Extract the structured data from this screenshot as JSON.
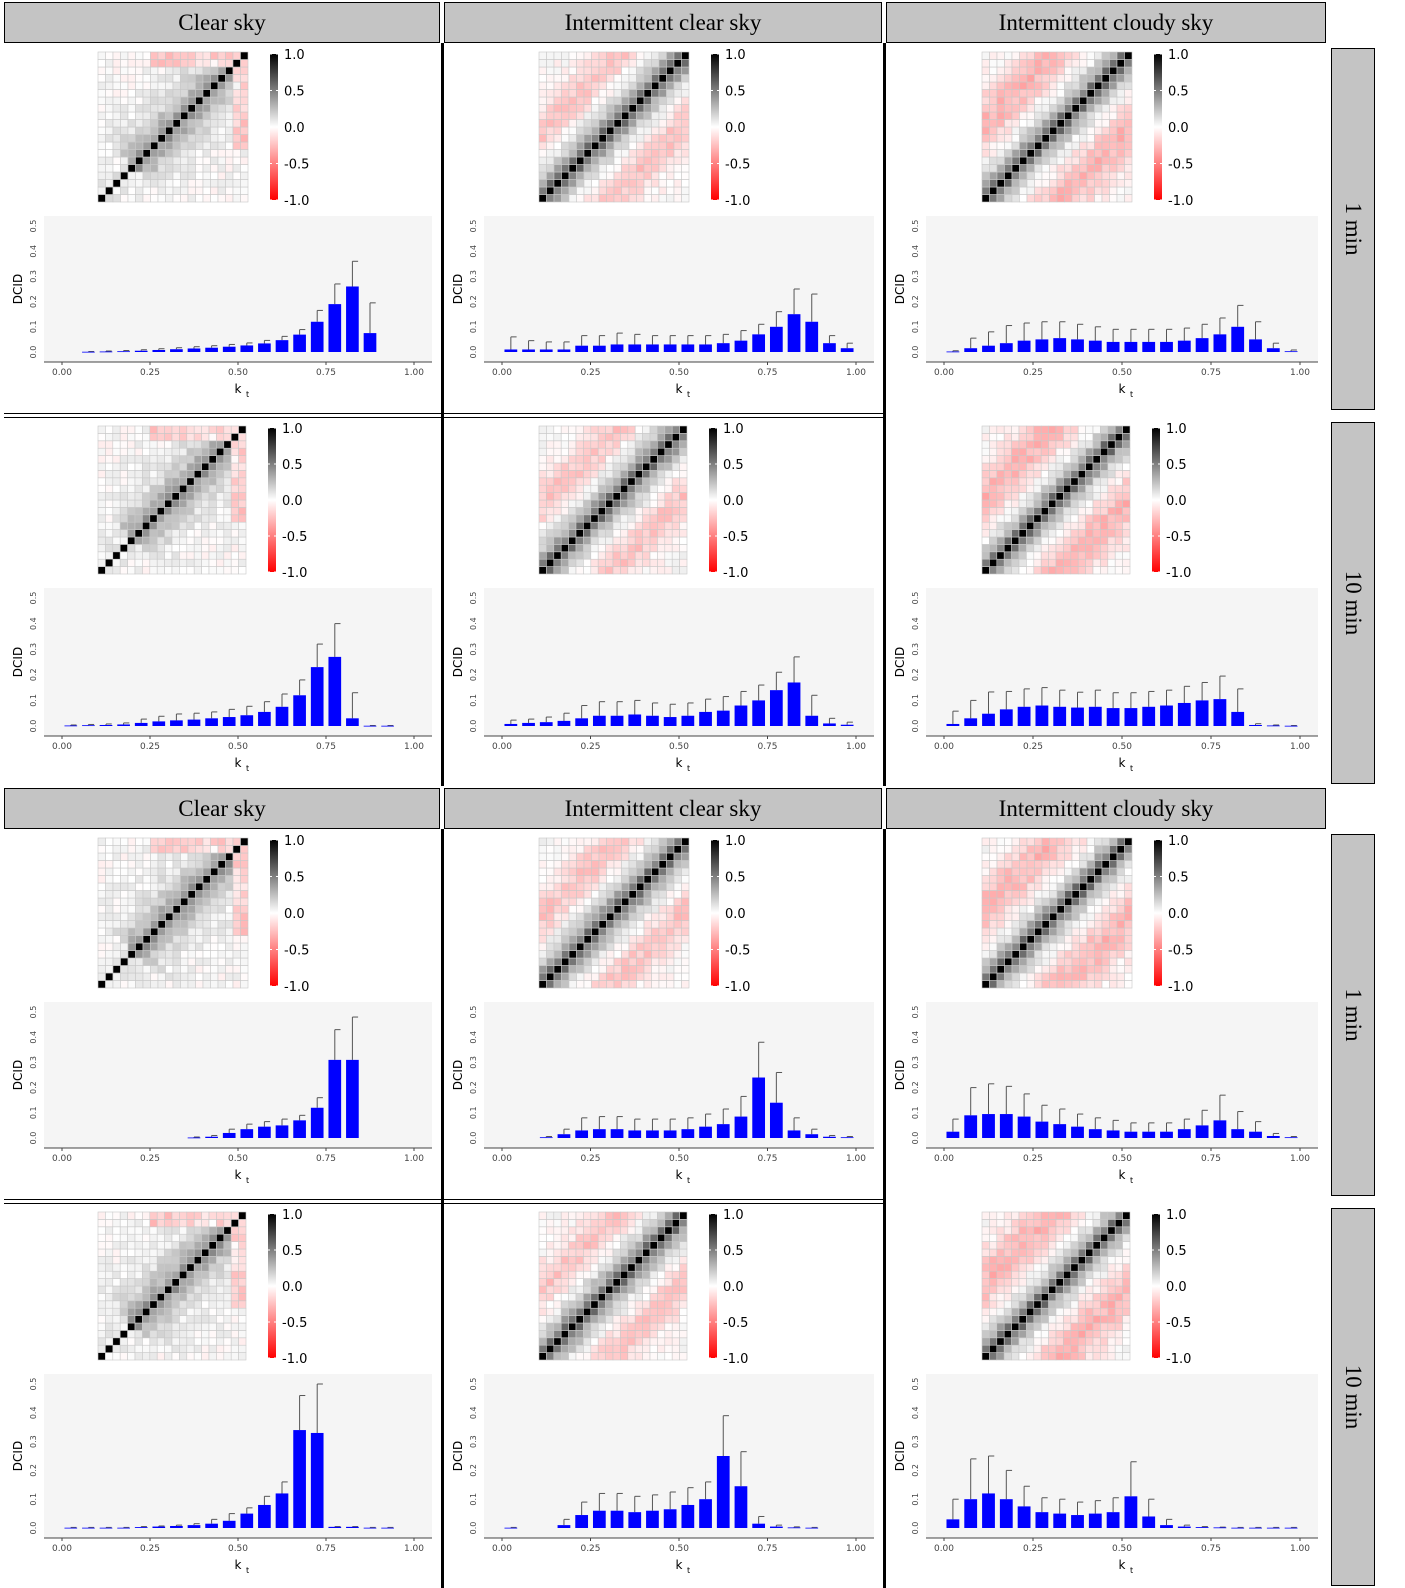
{
  "facets": {
    "columns": [
      "Clear sky",
      "Intermittent clear sky",
      "Intermittent cloudy sky"
    ],
    "rows": [
      "1 min",
      "10 min"
    ]
  },
  "colorbar": {
    "ticks": [
      "1.0",
      "0.5",
      "0.0",
      "-0.5",
      "-1.0"
    ],
    "colors": {
      "positive": "#000000",
      "zero": "#ffffff",
      "negative": "#ff0000"
    }
  },
  "bar_axis": {
    "ylabel": "DCID",
    "xlabel": "k",
    "xlabel_sub": "t",
    "xticks": [
      "0.00",
      "0.25",
      "0.50",
      "0.75",
      "1.00"
    ],
    "yticks": [
      "0.0",
      "0.1",
      "0.2",
      "0.3",
      "0.4",
      "0.5"
    ],
    "bar_color": "#0000ff",
    "panel_bg": "#f5f5f5"
  },
  "chart_data": [
    {
      "type": "bar",
      "block": 1,
      "column": "Clear sky",
      "row": "1 min",
      "bin_width": 0.05,
      "x": [
        0.075,
        0.125,
        0.175,
        0.225,
        0.275,
        0.325,
        0.375,
        0.425,
        0.475,
        0.525,
        0.575,
        0.625,
        0.675,
        0.725,
        0.775,
        0.825,
        0.875
      ],
      "values": [
        0.001,
        0.002,
        0.003,
        0.005,
        0.008,
        0.011,
        0.014,
        0.017,
        0.021,
        0.026,
        0.034,
        0.047,
        0.069,
        0.12,
        0.19,
        0.26,
        0.075
      ],
      "errors": [
        0.001,
        0.002,
        0.003,
        0.004,
        0.005,
        0.006,
        0.007,
        0.008,
        0.009,
        0.01,
        0.012,
        0.015,
        0.02,
        0.045,
        0.08,
        0.1,
        0.12
      ],
      "xlim": [
        0,
        1
      ],
      "ylim": [
        0,
        0.5
      ]
    },
    {
      "type": "bar",
      "block": 1,
      "column": "Intermittent clear sky",
      "row": "1 min",
      "bin_width": 0.05,
      "x": [
        0.025,
        0.075,
        0.125,
        0.175,
        0.225,
        0.275,
        0.325,
        0.375,
        0.425,
        0.475,
        0.525,
        0.575,
        0.625,
        0.675,
        0.725,
        0.775,
        0.825,
        0.875,
        0.925,
        0.975
      ],
      "values": [
        0.01,
        0.01,
        0.01,
        0.01,
        0.025,
        0.025,
        0.03,
        0.03,
        0.03,
        0.03,
        0.03,
        0.03,
        0.035,
        0.045,
        0.07,
        0.1,
        0.15,
        0.12,
        0.035,
        0.015
      ],
      "errors": [
        0.05,
        0.035,
        0.03,
        0.03,
        0.04,
        0.04,
        0.045,
        0.04,
        0.035,
        0.035,
        0.035,
        0.035,
        0.035,
        0.04,
        0.04,
        0.06,
        0.1,
        0.11,
        0.03,
        0.02
      ],
      "xlim": [
        0,
        1
      ],
      "ylim": [
        0,
        0.5
      ]
    },
    {
      "type": "bar",
      "block": 1,
      "column": "Intermittent cloudy sky",
      "row": "1 min",
      "bin_width": 0.05,
      "x": [
        0.025,
        0.075,
        0.125,
        0.175,
        0.225,
        0.275,
        0.325,
        0.375,
        0.425,
        0.475,
        0.525,
        0.575,
        0.625,
        0.675,
        0.725,
        0.775,
        0.825,
        0.875,
        0.925,
        0.975
      ],
      "values": [
        0.002,
        0.015,
        0.025,
        0.035,
        0.045,
        0.05,
        0.055,
        0.05,
        0.045,
        0.04,
        0.04,
        0.04,
        0.04,
        0.045,
        0.055,
        0.07,
        0.1,
        0.05,
        0.015,
        0.003
      ],
      "errors": [
        0.003,
        0.04,
        0.055,
        0.07,
        0.07,
        0.07,
        0.065,
        0.06,
        0.055,
        0.05,
        0.05,
        0.05,
        0.05,
        0.05,
        0.055,
        0.065,
        0.085,
        0.07,
        0.02,
        0.005
      ],
      "xlim": [
        0,
        1
      ],
      "ylim": [
        0,
        0.5
      ]
    },
    {
      "type": "bar",
      "block": 1,
      "column": "Clear sky",
      "row": "10 min",
      "bin_width": 0.05,
      "x": [
        0.025,
        0.075,
        0.125,
        0.175,
        0.225,
        0.275,
        0.325,
        0.375,
        0.425,
        0.475,
        0.525,
        0.575,
        0.625,
        0.675,
        0.725,
        0.775,
        0.825,
        0.875,
        0.925
      ],
      "values": [
        0.002,
        0.003,
        0.004,
        0.006,
        0.012,
        0.018,
        0.022,
        0.025,
        0.03,
        0.035,
        0.042,
        0.055,
        0.075,
        0.12,
        0.23,
        0.27,
        0.03,
        0.001,
        0.001
      ],
      "errors": [
        0.002,
        0.003,
        0.004,
        0.006,
        0.015,
        0.02,
        0.025,
        0.025,
        0.025,
        0.03,
        0.035,
        0.04,
        0.05,
        0.06,
        0.09,
        0.13,
        0.1,
        0.001,
        0.001
      ],
      "xlim": [
        0,
        1
      ],
      "ylim": [
        0,
        0.5
      ]
    },
    {
      "type": "bar",
      "block": 1,
      "column": "Intermittent clear sky",
      "row": "10 min",
      "bin_width": 0.05,
      "x": [
        0.025,
        0.075,
        0.125,
        0.175,
        0.225,
        0.275,
        0.325,
        0.375,
        0.425,
        0.475,
        0.525,
        0.575,
        0.625,
        0.675,
        0.725,
        0.775,
        0.825,
        0.875,
        0.925,
        0.975
      ],
      "values": [
        0.008,
        0.012,
        0.015,
        0.02,
        0.03,
        0.04,
        0.04,
        0.045,
        0.04,
        0.035,
        0.04,
        0.055,
        0.06,
        0.08,
        0.1,
        0.14,
        0.17,
        0.04,
        0.01,
        0.005
      ],
      "errors": [
        0.015,
        0.015,
        0.02,
        0.03,
        0.05,
        0.055,
        0.055,
        0.055,
        0.05,
        0.05,
        0.05,
        0.05,
        0.055,
        0.055,
        0.06,
        0.07,
        0.1,
        0.08,
        0.02,
        0.01
      ],
      "xlim": [
        0,
        1
      ],
      "ylim": [
        0,
        0.5
      ]
    },
    {
      "type": "bar",
      "block": 1,
      "column": "Intermittent cloudy sky",
      "row": "10 min",
      "bin_width": 0.05,
      "x": [
        0.025,
        0.075,
        0.125,
        0.175,
        0.225,
        0.275,
        0.325,
        0.375,
        0.425,
        0.475,
        0.525,
        0.575,
        0.625,
        0.675,
        0.725,
        0.775,
        0.825,
        0.875,
        0.925,
        0.975
      ],
      "values": [
        0.008,
        0.03,
        0.048,
        0.065,
        0.075,
        0.08,
        0.075,
        0.072,
        0.075,
        0.07,
        0.07,
        0.075,
        0.08,
        0.09,
        0.1,
        0.105,
        0.055,
        0.004,
        0.002,
        0.001
      ],
      "errors": [
        0.05,
        0.07,
        0.085,
        0.07,
        0.07,
        0.07,
        0.065,
        0.06,
        0.065,
        0.06,
        0.06,
        0.06,
        0.06,
        0.065,
        0.07,
        0.09,
        0.09,
        0.005,
        0.002,
        0.001
      ],
      "xlim": [
        0,
        1
      ],
      "ylim": [
        0,
        0.5
      ]
    },
    {
      "type": "bar",
      "block": 2,
      "column": "Clear sky",
      "row": "1 min",
      "bin_width": 0.05,
      "x": [
        0.375,
        0.425,
        0.475,
        0.525,
        0.575,
        0.625,
        0.675,
        0.725,
        0.775,
        0.825
      ],
      "values": [
        0.002,
        0.005,
        0.02,
        0.035,
        0.045,
        0.05,
        0.07,
        0.12,
        0.31,
        0.31
      ],
      "errors": [
        0.002,
        0.005,
        0.015,
        0.02,
        0.02,
        0.025,
        0.02,
        0.04,
        0.12,
        0.17
      ],
      "xlim": [
        0,
        1
      ],
      "ylim": [
        0,
        0.5
      ]
    },
    {
      "type": "bar",
      "block": 2,
      "column": "Intermittent clear sky",
      "row": "1 min",
      "bin_width": 0.05,
      "x": [
        0.125,
        0.175,
        0.225,
        0.275,
        0.325,
        0.375,
        0.425,
        0.475,
        0.525,
        0.575,
        0.625,
        0.675,
        0.725,
        0.775,
        0.825,
        0.875,
        0.925,
        0.975
      ],
      "values": [
        0.003,
        0.015,
        0.03,
        0.035,
        0.035,
        0.03,
        0.03,
        0.03,
        0.035,
        0.045,
        0.055,
        0.085,
        0.24,
        0.14,
        0.03,
        0.015,
        0.005,
        0.003
      ],
      "errors": [
        0.003,
        0.02,
        0.05,
        0.05,
        0.05,
        0.045,
        0.045,
        0.045,
        0.045,
        0.05,
        0.06,
        0.08,
        0.14,
        0.12,
        0.05,
        0.02,
        0.005,
        0.003
      ],
      "xlim": [
        0,
        1
      ],
      "ylim": [
        0,
        0.5
      ]
    },
    {
      "type": "bar",
      "block": 2,
      "column": "Intermittent cloudy sky",
      "row": "1 min",
      "bin_width": 0.05,
      "x": [
        0.025,
        0.075,
        0.125,
        0.175,
        0.225,
        0.275,
        0.325,
        0.375,
        0.425,
        0.475,
        0.525,
        0.575,
        0.625,
        0.675,
        0.725,
        0.775,
        0.825,
        0.875,
        0.925,
        0.975
      ],
      "values": [
        0.025,
        0.09,
        0.095,
        0.095,
        0.085,
        0.065,
        0.055,
        0.045,
        0.035,
        0.03,
        0.025,
        0.025,
        0.025,
        0.035,
        0.05,
        0.07,
        0.035,
        0.025,
        0.008,
        0.003
      ],
      "errors": [
        0.05,
        0.11,
        0.12,
        0.11,
        0.09,
        0.065,
        0.06,
        0.05,
        0.045,
        0.04,
        0.035,
        0.035,
        0.035,
        0.04,
        0.06,
        0.1,
        0.07,
        0.04,
        0.01,
        0.003
      ],
      "xlim": [
        0,
        1
      ],
      "ylim": [
        0,
        0.5
      ]
    },
    {
      "type": "bar",
      "block": 2,
      "column": "Clear sky",
      "row": "10 min",
      "bin_width": 0.05,
      "x": [
        0.025,
        0.075,
        0.125,
        0.175,
        0.225,
        0.275,
        0.325,
        0.375,
        0.425,
        0.475,
        0.525,
        0.575,
        0.625,
        0.675,
        0.725,
        0.775,
        0.825,
        0.875,
        0.925
      ],
      "values": [
        0.001,
        0.001,
        0.001,
        0.001,
        0.003,
        0.005,
        0.007,
        0.01,
        0.015,
        0.025,
        0.05,
        0.08,
        0.12,
        0.34,
        0.33,
        0.004,
        0.004,
        0.001,
        0.001
      ],
      "errors": [
        0.001,
        0.001,
        0.001,
        0.001,
        0.002,
        0.002,
        0.003,
        0.005,
        0.015,
        0.025,
        0.02,
        0.03,
        0.04,
        0.12,
        0.17,
        0.001,
        0.001,
        0.001,
        0.001
      ],
      "xlim": [
        0,
        1
      ],
      "ylim": [
        0,
        0.5
      ]
    },
    {
      "type": "bar",
      "block": 2,
      "column": "Intermittent clear sky",
      "row": "10 min",
      "bin_width": 0.05,
      "x": [
        0.025,
        0.175,
        0.225,
        0.275,
        0.325,
        0.375,
        0.425,
        0.475,
        0.525,
        0.575,
        0.625,
        0.675,
        0.725,
        0.775,
        0.825,
        0.875
      ],
      "values": [
        0.001,
        0.01,
        0.045,
        0.06,
        0.06,
        0.055,
        0.06,
        0.065,
        0.08,
        0.1,
        0.25,
        0.145,
        0.015,
        0.005,
        0.002,
        0.001
      ],
      "errors": [
        0.001,
        0.02,
        0.045,
        0.06,
        0.06,
        0.055,
        0.055,
        0.06,
        0.06,
        0.06,
        0.14,
        0.12,
        0.025,
        0.005,
        0.002,
        0.001
      ],
      "xlim": [
        0,
        1
      ],
      "ylim": [
        0,
        0.5
      ]
    },
    {
      "type": "bar",
      "block": 2,
      "column": "Intermittent cloudy sky",
      "row": "10 min",
      "bin_width": 0.05,
      "x": [
        0.025,
        0.075,
        0.125,
        0.175,
        0.225,
        0.275,
        0.325,
        0.375,
        0.425,
        0.475,
        0.525,
        0.575,
        0.625,
        0.675,
        0.725,
        0.775,
        0.825,
        0.875,
        0.925,
        0.975
      ],
      "values": [
        0.03,
        0.1,
        0.12,
        0.1,
        0.075,
        0.055,
        0.05,
        0.045,
        0.05,
        0.055,
        0.11,
        0.04,
        0.01,
        0.005,
        0.003,
        0.002,
        0.001,
        0.001,
        0.001,
        0.001
      ],
      "errors": [
        0.07,
        0.14,
        0.13,
        0.1,
        0.07,
        0.05,
        0.05,
        0.045,
        0.045,
        0.05,
        0.12,
        0.06,
        0.02,
        0.005,
        0.002,
        0.001,
        0.001,
        0.001,
        0.001,
        0.001
      ],
      "xlim": [
        0,
        1
      ],
      "ylim": [
        0,
        0.5
      ]
    }
  ]
}
